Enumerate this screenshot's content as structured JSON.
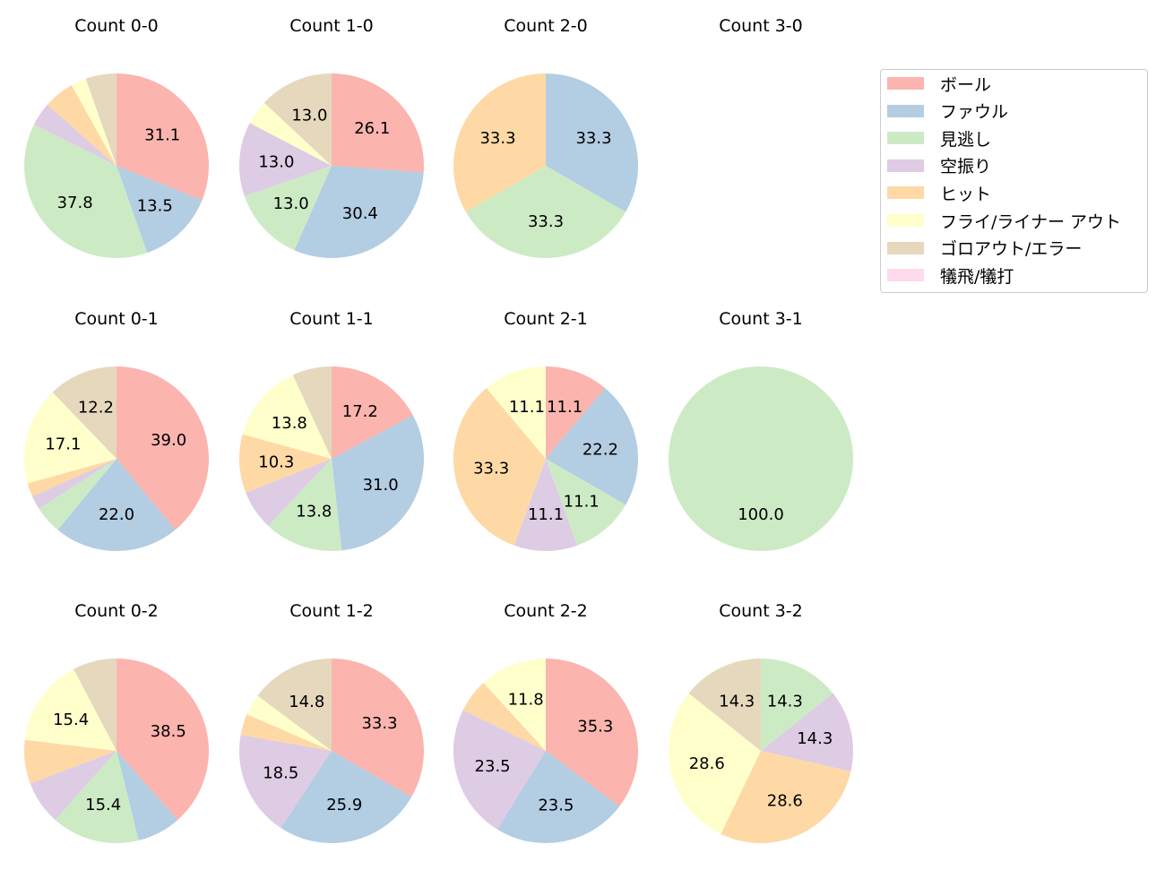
{
  "chart_data": {
    "type": "pie",
    "legend_position": "top-right",
    "colors": [
      "#fbb4ae",
      "#b3cde3",
      "#ccebc5",
      "#decbe4",
      "#fed9a6",
      "#ffffcc",
      "#e5d8bd",
      "#fddaec"
    ],
    "legend": [
      "ボール",
      "ファウル",
      "見逃し",
      "空振り",
      "ヒット",
      "フライ/ライナー アウト",
      "ゴロアウト/エラー",
      "犠飛/犠打"
    ],
    "label_threshold": 10,
    "charts": [
      {
        "title": "Count 0-0",
        "values": [
          31.1,
          13.5,
          37.8,
          4.1,
          5.4,
          2.7,
          5.4,
          0
        ]
      },
      {
        "title": "Count 1-0",
        "values": [
          26.1,
          30.4,
          13.0,
          13.0,
          0,
          4.3,
          13.0,
          0
        ]
      },
      {
        "title": "Count 2-0",
        "values": [
          0,
          33.3,
          33.3,
          0,
          33.3,
          0,
          0,
          0
        ]
      },
      {
        "title": "Count 3-0",
        "values": []
      },
      {
        "title": "Count 0-1",
        "values": [
          39.0,
          22.0,
          4.9,
          2.4,
          2.4,
          17.1,
          12.2,
          0
        ]
      },
      {
        "title": "Count 1-1",
        "values": [
          17.2,
          31.0,
          13.8,
          6.9,
          10.3,
          13.8,
          6.9,
          0
        ]
      },
      {
        "title": "Count 2-1",
        "values": [
          11.1,
          22.2,
          11.1,
          11.1,
          33.3,
          11.1,
          0,
          0
        ]
      },
      {
        "title": "Count 3-1",
        "values": [
          0,
          0,
          100.0,
          0,
          0,
          0,
          0,
          0
        ]
      },
      {
        "title": "Count 0-2",
        "values": [
          38.5,
          7.7,
          15.4,
          7.7,
          7.7,
          15.4,
          7.7,
          0
        ]
      },
      {
        "title": "Count 1-2",
        "values": [
          33.3,
          25.9,
          0,
          18.5,
          3.7,
          3.7,
          14.8,
          0
        ]
      },
      {
        "title": "Count 2-2",
        "values": [
          35.3,
          23.5,
          0,
          23.5,
          5.9,
          11.8,
          0,
          0
        ]
      },
      {
        "title": "Count 3-2",
        "values": [
          0,
          0,
          14.3,
          14.3,
          28.6,
          28.6,
          14.3,
          0
        ]
      }
    ]
  }
}
